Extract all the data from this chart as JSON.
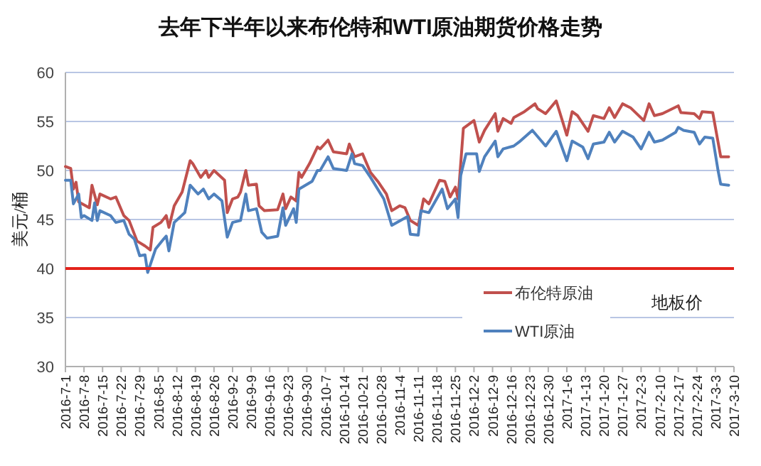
{
  "chart_data": {
    "type": "line",
    "title": "去年下半年以来布伦特和WTI原油期货价格走势",
    "ylabel": "美元/桶",
    "ylim": [
      30,
      60
    ],
    "yticks": [
      30,
      35,
      40,
      45,
      50,
      55,
      60
    ],
    "xlim": [
      "2016-07-01",
      "2017-03-10"
    ],
    "xticks": [
      {
        "value": "2016-07-01",
        "label": "2016-7-1"
      },
      {
        "value": "2016-07-08",
        "label": "2016-7-8"
      },
      {
        "value": "2016-07-15",
        "label": "2016-7-15"
      },
      {
        "value": "2016-07-22",
        "label": "2016-7-22"
      },
      {
        "value": "2016-07-29",
        "label": "2016-7-29"
      },
      {
        "value": "2016-08-05",
        "label": "2016-8-5"
      },
      {
        "value": "2016-08-12",
        "label": "2016-8-12"
      },
      {
        "value": "2016-08-19",
        "label": "2016-8-19"
      },
      {
        "value": "2016-08-26",
        "label": "2016-8-26"
      },
      {
        "value": "2016-09-02",
        "label": "2016-9-2"
      },
      {
        "value": "2016-09-09",
        "label": "2016-9-9"
      },
      {
        "value": "2016-09-16",
        "label": "2016-9-16"
      },
      {
        "value": "2016-09-23",
        "label": "2016-9-23"
      },
      {
        "value": "2016-09-30",
        "label": "2016-9-30"
      },
      {
        "value": "2016-10-07",
        "label": "2016-10-7"
      },
      {
        "value": "2016-10-14",
        "label": "2016-10-14"
      },
      {
        "value": "2016-10-21",
        "label": "2016-10-21"
      },
      {
        "value": "2016-10-28",
        "label": "2016-10-28"
      },
      {
        "value": "2016-11-04",
        "label": "2016-11-4"
      },
      {
        "value": "2016-11-11",
        "label": "2016-11-11"
      },
      {
        "value": "2016-11-18",
        "label": "2016-11-18"
      },
      {
        "value": "2016-11-25",
        "label": "2016-11-25"
      },
      {
        "value": "2016-12-02",
        "label": "2016-12-2"
      },
      {
        "value": "2016-12-09",
        "label": "2016-12-9"
      },
      {
        "value": "2016-12-16",
        "label": "2016-12-16"
      },
      {
        "value": "2016-12-23",
        "label": "2016-12-23"
      },
      {
        "value": "2016-12-30",
        "label": "2016-12-30"
      },
      {
        "value": "2017-01-06",
        "label": "2017-1-6"
      },
      {
        "value": "2017-01-13",
        "label": "2017-1-13"
      },
      {
        "value": "2017-01-20",
        "label": "2017-1-20"
      },
      {
        "value": "2017-01-27",
        "label": "2017-1-27"
      },
      {
        "value": "2017-02-03",
        "label": "2017-2-3"
      },
      {
        "value": "2017-02-10",
        "label": "2017-2-10"
      },
      {
        "value": "2017-02-17",
        "label": "2017-2-17"
      },
      {
        "value": "2017-02-24",
        "label": "2017-2-24"
      },
      {
        "value": "2017-03-03",
        "label": "2017-3-3"
      },
      {
        "value": "2017-03-10",
        "label": "2017-3-10"
      }
    ],
    "grid": "y",
    "legend": "bottom right",
    "marker": "none",
    "line_style": "solid",
    "ref_lines": [
      {
        "axis": "y",
        "value": 40,
        "label": "地板价",
        "color": "#e3231c"
      }
    ],
    "series": [
      {
        "name": "布伦特原油",
        "color": "#c0504d",
        "x": [
          "2016-07-01",
          "2016-07-03",
          "2016-07-04",
          "2016-07-05",
          "2016-07-06",
          "2016-07-10",
          "2016-07-11",
          "2016-07-13",
          "2016-07-14",
          "2016-07-18",
          "2016-07-20",
          "2016-07-23",
          "2016-07-25",
          "2016-07-28",
          "2016-07-31",
          "2016-08-02",
          "2016-08-03",
          "2016-08-06",
          "2016-08-08",
          "2016-08-09",
          "2016-08-11",
          "2016-08-14",
          "2016-08-17",
          "2016-08-18",
          "2016-08-21",
          "2016-08-23",
          "2016-08-24",
          "2016-08-26",
          "2016-08-30",
          "2016-08-31",
          "2016-09-02",
          "2016-09-04",
          "2016-09-05",
          "2016-09-07",
          "2016-09-08",
          "2016-09-11",
          "2016-09-12",
          "2016-09-14",
          "2016-09-19",
          "2016-09-21",
          "2016-09-22",
          "2016-09-24",
          "2016-09-26",
          "2016-09-27",
          "2016-09-28",
          "2016-10-01",
          "2016-10-04",
          "2016-10-05",
          "2016-10-08",
          "2016-10-10",
          "2016-10-15",
          "2016-10-16",
          "2016-10-18",
          "2016-10-21",
          "2016-10-24",
          "2016-10-27",
          "2016-10-30",
          "2016-11-01",
          "2016-11-04",
          "2016-11-06",
          "2016-11-08",
          "2016-11-11",
          "2016-11-13",
          "2016-11-15",
          "2016-11-19",
          "2016-11-21",
          "2016-11-23",
          "2016-11-25",
          "2016-11-26",
          "2016-11-28",
          "2016-12-02",
          "2016-12-04",
          "2016-12-06",
          "2016-12-10",
          "2016-12-11",
          "2016-12-13",
          "2016-12-16",
          "2016-12-17",
          "2016-12-21",
          "2016-12-25",
          "2016-12-26",
          "2016-12-29",
          "2017-01-02",
          "2017-01-06",
          "2017-01-08",
          "2017-01-10",
          "2017-01-14",
          "2017-01-16",
          "2017-01-20",
          "2017-01-22",
          "2017-01-24",
          "2017-01-27",
          "2017-01-30",
          "2017-02-04",
          "2017-02-06",
          "2017-02-08",
          "2017-02-11",
          "2017-02-17",
          "2017-02-18",
          "2017-02-23",
          "2017-02-25",
          "2017-02-26",
          "2017-03-02",
          "2017-03-04",
          "2017-03-05",
          "2017-03-08"
        ],
        "values": [
          50.4,
          50.2,
          48.1,
          48.8,
          46.8,
          46.2,
          48.5,
          46.5,
          47.6,
          47.1,
          47.3,
          45.4,
          44.9,
          42.8,
          42.3,
          41.9,
          44.2,
          44.7,
          45.4,
          44.2,
          46.4,
          47.8,
          51.0,
          50.7,
          49.3,
          50.0,
          49.3,
          50.0,
          49.0,
          45.7,
          47.1,
          47.3,
          47.8,
          50.0,
          48.5,
          48.6,
          46.4,
          45.9,
          46.0,
          47.6,
          46.1,
          47.3,
          46.9,
          49.8,
          49.3,
          50.7,
          52.4,
          52.2,
          53.1,
          51.9,
          51.7,
          52.7,
          51.4,
          51.7,
          49.8,
          48.8,
          47.6,
          45.9,
          46.4,
          46.2,
          44.9,
          44.4,
          47.1,
          46.6,
          49.0,
          48.9,
          47.3,
          48.3,
          47.1,
          54.3,
          55.1,
          52.9,
          54.1,
          55.8,
          54.0,
          55.3,
          54.8,
          55.4,
          56.0,
          56.8,
          56.3,
          55.8,
          57.1,
          53.6,
          56.0,
          55.6,
          54.0,
          55.6,
          55.3,
          56.4,
          55.4,
          56.8,
          56.4,
          55.1,
          56.8,
          55.6,
          55.8,
          56.6,
          55.9,
          55.8,
          55.3,
          56.0,
          55.9,
          52.9,
          51.4,
          51.4
        ]
      },
      {
        "name": "WTI原油",
        "color": "#4f81bd",
        "x": [
          "2016-07-01",
          "2016-07-03",
          "2016-07-04",
          "2016-07-06",
          "2016-07-07",
          "2016-07-08",
          "2016-07-11",
          "2016-07-12",
          "2016-07-13",
          "2016-07-14",
          "2016-07-18",
          "2016-07-20",
          "2016-07-23",
          "2016-07-25",
          "2016-07-27",
          "2016-07-29",
          "2016-07-31",
          "2016-08-01",
          "2016-08-04",
          "2016-08-07",
          "2016-08-08",
          "2016-08-09",
          "2016-08-11",
          "2016-08-15",
          "2016-08-17",
          "2016-08-20",
          "2016-08-22",
          "2016-08-24",
          "2016-08-26",
          "2016-08-29",
          "2016-08-31",
          "2016-09-02",
          "2016-09-05",
          "2016-09-07",
          "2016-09-08",
          "2016-09-11",
          "2016-09-13",
          "2016-09-15",
          "2016-09-19",
          "2016-09-21",
          "2016-09-22",
          "2016-09-25",
          "2016-09-26",
          "2016-09-27",
          "2016-10-02",
          "2016-10-04",
          "2016-10-05",
          "2016-10-08",
          "2016-10-10",
          "2016-10-15",
          "2016-10-17",
          "2016-10-18",
          "2016-10-21",
          "2016-10-24",
          "2016-10-29",
          "2016-11-01",
          "2016-11-07",
          "2016-11-08",
          "2016-11-11",
          "2016-11-12",
          "2016-11-15",
          "2016-11-20",
          "2016-11-22",
          "2016-11-25",
          "2016-11-26",
          "2016-11-27",
          "2016-11-29",
          "2016-12-03",
          "2016-12-04",
          "2016-12-06",
          "2016-12-10",
          "2016-12-11",
          "2016-12-13",
          "2016-12-17",
          "2016-12-19",
          "2016-12-24",
          "2016-12-29",
          "2017-01-02",
          "2017-01-06",
          "2017-01-08",
          "2017-01-12",
          "2017-01-14",
          "2017-01-16",
          "2017-01-20",
          "2017-01-22",
          "2017-01-24",
          "2017-01-27",
          "2017-01-31",
          "2017-02-03",
          "2017-02-06",
          "2017-02-08",
          "2017-02-11",
          "2017-02-16",
          "2017-02-17",
          "2017-02-19",
          "2017-02-23",
          "2017-02-25",
          "2017-02-27",
          "2017-03-02",
          "2017-03-04",
          "2017-03-05",
          "2017-03-08"
        ],
        "values": [
          49.0,
          49.0,
          46.6,
          47.6,
          45.2,
          45.4,
          44.9,
          46.7,
          44.9,
          45.9,
          45.4,
          44.7,
          44.9,
          43.5,
          43.0,
          41.3,
          41.4,
          39.6,
          42.0,
          43.0,
          43.3,
          41.8,
          44.7,
          45.7,
          48.5,
          47.6,
          48.1,
          47.1,
          47.6,
          46.9,
          43.2,
          44.7,
          44.9,
          47.6,
          45.9,
          46.1,
          43.7,
          43.1,
          43.3,
          46.2,
          44.4,
          46.1,
          44.7,
          48.1,
          48.9,
          50.0,
          50.0,
          51.4,
          50.2,
          50.0,
          51.7,
          50.7,
          50.5,
          49.3,
          47.1,
          44.4,
          45.3,
          43.5,
          43.4,
          45.9,
          45.7,
          48.1,
          46.1,
          47.1,
          45.2,
          49.5,
          51.7,
          51.7,
          49.9,
          51.4,
          53.0,
          51.4,
          52.2,
          52.5,
          52.9,
          54.1,
          52.5,
          54.0,
          51.0,
          53.0,
          52.4,
          51.2,
          52.7,
          52.9,
          53.9,
          52.9,
          54.0,
          53.4,
          52.2,
          53.9,
          52.9,
          53.1,
          53.9,
          54.4,
          54.1,
          53.9,
          52.7,
          53.4,
          53.3,
          50.0,
          48.6,
          48.5
        ]
      }
    ]
  }
}
